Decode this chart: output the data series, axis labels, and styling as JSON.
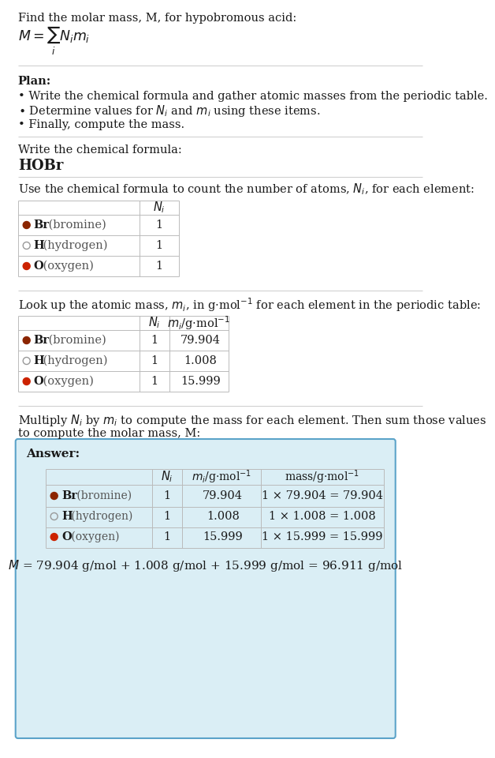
{
  "bg_color": "#ffffff",
  "answer_bg": "#daeef5",
  "answer_border": "#5ba3c9",
  "text_color": "#1a1a1a",
  "gray_text": "#555555",
  "table_line_color": "#bbbbbb",
  "sep_line_color": "#cccccc",
  "title_text": "Find the molar mass, M, for hypobromous acid:",
  "plan_header": "Plan:",
  "plan_b1": "• Write the chemical formula and gather atomic masses from the periodic table.",
  "plan_b2_pre": "• Determine values for ",
  "plan_b2_mid": " and ",
  "plan_b2_post": " using these items.",
  "plan_b3": "• Finally, compute the mass.",
  "formula_label": "Write the chemical formula:",
  "formula_value": "HOBr",
  "count_label": "Use the chemical formula to count the number of atoms, ",
  "count_label2": ", for each element:",
  "lookup_label": "Look up the atomic mass, ",
  "lookup_label2": ", in g·mol",
  "lookup_label3": " for each element in the periodic table:",
  "multiply_label1": "Multiply ",
  "multiply_label2": " by ",
  "multiply_label3": " to compute the mass for each element. Then sum those values",
  "multiply_label4": "to compute the molar mass, M:",
  "answer_label": "Answer:",
  "elements": [
    {
      "name": "Br (bromine)",
      "symbol": "Br",
      "rest": " (bromine)",
      "color": "#8B2500",
      "fill": true,
      "Ni": "1",
      "mi": "79.904",
      "mass_expr": "1 × 79.904 = 79.904"
    },
    {
      "name": "H (hydrogen)",
      "symbol": "H",
      "rest": " (hydrogen)",
      "color": "#999999",
      "fill": false,
      "Ni": "1",
      "mi": "1.008",
      "mass_expr": "1 × 1.008 = 1.008"
    },
    {
      "name": "O (oxygen)",
      "symbol": "O",
      "rest": " (oxygen)",
      "color": "#cc2200",
      "fill": true,
      "Ni": "1",
      "mi": "15.999",
      "mass_expr": "1 × 15.999 = 15.999"
    }
  ],
  "final_eq": "M = 79.904 g/mol + 1.008 g/mol + 15.999 g/mol = 96.911 g/mol"
}
